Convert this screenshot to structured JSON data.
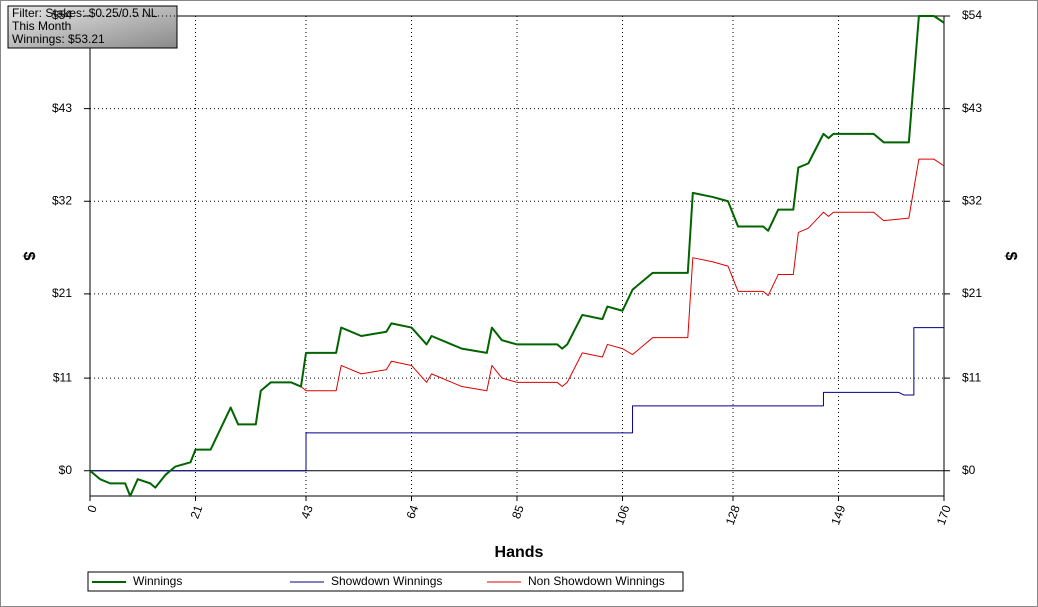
{
  "chart_data": {
    "type": "line",
    "annotations": [
      "Filter: Stakes: $0.25/0.5 NL",
      "This Month",
      "Winnings: $53.21"
    ],
    "xlabel": "Hands",
    "ylabel": "$",
    "y2label": "$",
    "xlim": [
      0,
      170
    ],
    "xticks": [
      0,
      21,
      43,
      64,
      85,
      106,
      128,
      149,
      170
    ],
    "ylim": [
      -3,
      54
    ],
    "yticks": [
      {
        "value": 0,
        "label": "$0"
      },
      {
        "value": 11,
        "label": "$11"
      },
      {
        "value": 21,
        "label": "$21"
      },
      {
        "value": 32,
        "label": "$32"
      },
      {
        "value": 43,
        "label": "$43"
      },
      {
        "value": 54,
        "label": "$54"
      }
    ],
    "y2lim": [
      -3,
      54
    ],
    "y2ticks": [
      {
        "value": 0,
        "label": "$0"
      },
      {
        "value": 11,
        "label": "$11"
      },
      {
        "value": 21,
        "label": "$21"
      },
      {
        "value": 32,
        "label": "$32"
      },
      {
        "value": 43,
        "label": "$43"
      },
      {
        "value": 54,
        "label": "$54"
      }
    ],
    "grid": true,
    "series": [
      {
        "name": "Winnings",
        "color": "#006400",
        "x": [
          0,
          2,
          4,
          7,
          8,
          9.5,
          12,
          13,
          15,
          17,
          20,
          21,
          24,
          28,
          29.5,
          33,
          34,
          36,
          40,
          42,
          43,
          49,
          50,
          54,
          59,
          60,
          64,
          67,
          68,
          72,
          74,
          79,
          80,
          82,
          85,
          93,
          94,
          95,
          98,
          102,
          103,
          106,
          108,
          110,
          112,
          119,
          120,
          124,
          127,
          129,
          134,
          135,
          137,
          140,
          141,
          143,
          146,
          147,
          148,
          156,
          158,
          163,
          165,
          168,
          170
        ],
        "values": [
          0,
          -1,
          -1.5,
          -1.5,
          -3,
          -1,
          -1.5,
          -2,
          -0.5,
          0.5,
          1,
          2.5,
          2.5,
          7.5,
          5.5,
          5.5,
          9.5,
          10.5,
          10.5,
          10,
          14,
          14,
          17,
          16,
          16.5,
          17.5,
          17,
          15,
          16,
          15,
          14.5,
          14,
          17,
          15.5,
          15,
          15,
          14.5,
          15,
          18.5,
          18,
          19.5,
          19,
          21.5,
          22.5,
          23.5,
          23.5,
          33,
          32.5,
          32,
          29,
          29,
          28.5,
          31,
          31,
          36,
          36.5,
          40,
          39.5,
          40,
          40,
          39,
          39,
          54,
          54,
          53.2
        ]
      },
      {
        "name": "Showdown Winnings",
        "color": "#00008b",
        "x": [
          0,
          43,
          43,
          108,
          108,
          146,
          146,
          161,
          162,
          164,
          164,
          170
        ],
        "values": [
          0,
          0,
          4.5,
          4.5,
          7.7,
          7.7,
          9.3,
          9.3,
          9,
          9,
          17,
          17
        ]
      },
      {
        "name": "Non Showdown Winnings",
        "color": "#dd0000",
        "x": [
          0,
          2,
          4,
          7,
          8,
          9.5,
          12,
          13,
          15,
          17,
          20,
          21,
          24,
          28,
          29.5,
          33,
          34,
          36,
          40,
          42,
          43,
          49,
          50,
          54,
          59,
          60,
          64,
          67,
          68,
          72,
          74,
          79,
          80,
          82,
          85,
          93,
          94,
          95,
          98,
          102,
          103,
          106,
          108,
          110,
          112,
          119,
          120,
          124,
          127,
          129,
          134,
          135,
          137,
          140,
          141,
          143,
          146,
          147,
          148,
          156,
          158,
          163,
          165,
          168,
          170
        ],
        "values": [
          0,
          -1,
          -1.5,
          -1.5,
          -3,
          -1,
          -1.5,
          -2,
          -0.5,
          0.5,
          1,
          2.5,
          2.5,
          7.5,
          5.5,
          5.5,
          9.5,
          10.5,
          10.5,
          10,
          9.5,
          9.5,
          12.5,
          11.5,
          12,
          13,
          12.5,
          10.5,
          11.5,
          10.5,
          10,
          9.5,
          12.5,
          11,
          10.5,
          10.5,
          10,
          10.5,
          14,
          13.5,
          15,
          14.5,
          13.8,
          14.8,
          15.8,
          15.8,
          25.3,
          24.8,
          24.3,
          21.3,
          21.3,
          20.8,
          23.3,
          23.3,
          28.3,
          28.8,
          30.7,
          30.2,
          30.7,
          30.7,
          29.7,
          30,
          37,
          37,
          36.2
        ]
      }
    ]
  }
}
